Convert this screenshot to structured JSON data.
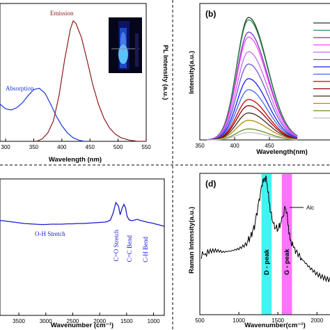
{
  "panels": {
    "b_label": "(b)",
    "d_label": "(d)"
  },
  "chart_data": [
    {
      "panel": "a",
      "type": "line",
      "xlabel": "Wavelength (nm)",
      "ylabel": "PL Intensity (a.u.)",
      "xlim": [
        290,
        550
      ],
      "x_ticks": [
        "300",
        "350",
        "400",
        "450",
        "500",
        "550"
      ],
      "x_tick_values": [
        300,
        350,
        400,
        450,
        500,
        550
      ],
      "series": [
        {
          "name": "Absorption",
          "color": "#1a37d6",
          "x": [
            290,
            300,
            310,
            320,
            330,
            340,
            350,
            360,
            370,
            380,
            390,
            400,
            410,
            420,
            430,
            440
          ],
          "y": [
            0.31,
            0.27,
            0.26,
            0.28,
            0.32,
            0.38,
            0.43,
            0.44,
            0.4,
            0.31,
            0.21,
            0.13,
            0.07,
            0.03,
            0.01,
            0.0
          ]
        },
        {
          "name": "Emission",
          "color": "#8b1a1a",
          "x": [
            355,
            365,
            375,
            385,
            395,
            405,
            415,
            420,
            425,
            435,
            445,
            455,
            465,
            475,
            485,
            495,
            505,
            520,
            535,
            550
          ],
          "y": [
            0.0,
            0.02,
            0.07,
            0.17,
            0.38,
            0.68,
            0.93,
            1.0,
            0.98,
            0.86,
            0.67,
            0.47,
            0.31,
            0.19,
            0.11,
            0.06,
            0.03,
            0.01,
            0.0,
            0.0
          ]
        }
      ],
      "annotations": [
        "Absorption",
        "Emission"
      ]
    },
    {
      "panel": "b",
      "type": "line",
      "xlabel": "Wavelength(nm)",
      "ylabel": "Intensity(a.u.)",
      "xlim": [
        350,
        450
      ],
      "x_ticks": [
        "350",
        "400",
        "450"
      ],
      "x_tick_values": [
        350,
        400,
        450
      ],
      "peak_center_nm": 420,
      "peak_heights": [
        1.0,
        0.98,
        0.88,
        0.84,
        0.72,
        0.62,
        0.5,
        0.41,
        0.33,
        0.28,
        0.22,
        0.16,
        0.09,
        0.06
      ],
      "series_colors": [
        "#1b3d1b",
        "#2e8b57",
        "#7b2fbe",
        "#ff44ff",
        "#cc66ff",
        "#6a5acd",
        "#1a1aff",
        "#4169e1",
        "#cc0000",
        "#8b0000",
        "#3d2b1f",
        "#b8860b",
        "#6b8e23",
        "#c0c0c0"
      ]
    },
    {
      "panel": "c",
      "type": "line",
      "xlabel": "Wavenumber (cm⁻¹)",
      "xlim": [
        4000,
        800
      ],
      "x_ticks": [
        "3500",
        "3000",
        "2500",
        "2000",
        "1500",
        "1000"
      ],
      "x_tick_values": [
        3500,
        3000,
        2500,
        2000,
        1500,
        1000
      ],
      "series": [
        {
          "color": "#1a1acc",
          "x": [
            4000,
            3900,
            3800,
            3700,
            3600,
            3500,
            3400,
            3300,
            3200,
            3100,
            3000,
            2900,
            2800,
            2700,
            2600,
            2500,
            2400,
            2300,
            2200,
            2100,
            2000,
            1900,
            1850,
            1800,
            1750,
            1700,
            1650,
            1620,
            1580,
            1550,
            1520,
            1490,
            1450,
            1400,
            1350,
            1300,
            1250,
            1200,
            1150,
            1100,
            1050,
            1000,
            950,
            900,
            850,
            800
          ],
          "y": [
            0.1,
            0.09,
            0.08,
            0.06,
            0.04,
            0.02,
            0.0,
            -0.01,
            -0.02,
            -0.03,
            -0.03,
            -0.02,
            -0.02,
            -0.02,
            -0.01,
            -0.01,
            0.0,
            0.0,
            0.01,
            0.02,
            0.03,
            0.04,
            0.06,
            0.1,
            0.3,
            0.6,
            0.5,
            0.25,
            0.45,
            0.55,
            0.45,
            0.2,
            0.1,
            0.08,
            0.1,
            0.12,
            0.09,
            0.07,
            0.05,
            0.03,
            0.02,
            0.0,
            -0.02,
            -0.04,
            -0.06,
            -0.08
          ]
        }
      ],
      "annotations": [
        "O-H Stretch",
        "C=O Stretch",
        "C=C Bend",
        "C-H Bend"
      ],
      "x_ticks_visible_partial": [
        "3500"
      ]
    },
    {
      "panel": "d",
      "type": "line",
      "xlabel": "Wavenumber(cm⁻¹)",
      "ylabel": "Raman Intensity(a.u.)",
      "xlim": [
        500,
        2300
      ],
      "x_ticks": [
        "500",
        "1000",
        "1500",
        "2000"
      ],
      "x_tick_values": [
        500,
        1000,
        1500,
        2000
      ],
      "legend": [
        "Alc"
      ],
      "bands": [
        {
          "label": "D - peak",
          "x_from": 1290,
          "x_to": 1420,
          "color": "#00f0f0"
        },
        {
          "label": "G - peak",
          "x_from": 1550,
          "x_to": 1680,
          "color": "#ff44ff"
        }
      ],
      "series": [
        {
          "name": "Alc",
          "color": "#000000",
          "x": [
            520,
            600,
            700,
            800,
            900,
            1000,
            1100,
            1150,
            1200,
            1250,
            1300,
            1330,
            1350,
            1370,
            1400,
            1450,
            1500,
            1550,
            1590,
            1610,
            1630,
            1660,
            1700,
            1750,
            1800,
            1900,
            2000,
            2100,
            2200,
            2300
          ],
          "y": [
            0.28,
            0.3,
            0.31,
            0.3,
            0.32,
            0.35,
            0.4,
            0.45,
            0.55,
            0.75,
            0.95,
            1.0,
            0.98,
            0.9,
            0.7,
            0.55,
            0.52,
            0.6,
            0.72,
            0.7,
            0.55,
            0.42,
            0.35,
            0.3,
            0.25,
            0.18,
            0.12,
            0.08,
            0.05,
            0.04
          ]
        }
      ]
    }
  ]
}
